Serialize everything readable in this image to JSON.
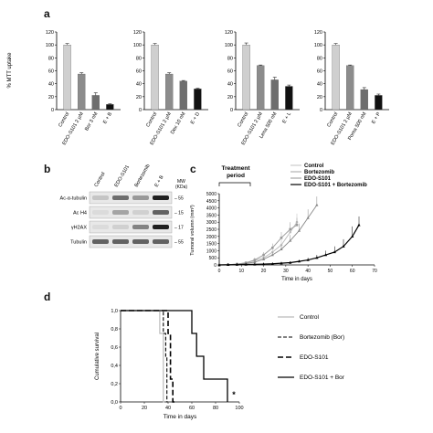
{
  "panels": {
    "a": "a",
    "b": "b",
    "c": "c",
    "d": "d"
  },
  "panel_a": {
    "ylabel": "% MTT uptake",
    "yticks": [
      "0",
      "20",
      "40",
      "60",
      "80",
      "100",
      "120"
    ],
    "colors": {
      "control": "#cfcfcf",
      "edo": "#8c8c8c",
      "drug": "#6e6e6e",
      "combo": "#111111"
    }
  },
  "panel_b": {
    "lanes": [
      "Control",
      "EDO-S101",
      "Bortezomib",
      "E + B"
    ],
    "rows": [
      "Ac-α-tubulin",
      "Ac H4",
      "γH2AX",
      "Tubulin"
    ],
    "mw_header": "MW\n(KDa)",
    "mw": [
      "– 55",
      "– 15",
      "– 17",
      "– 55"
    ]
  },
  "panel_c": {
    "annotation": "Treatment\nperiod",
    "legend": [
      "Control",
      "Bortezomib",
      "EDO-S101",
      "EDO-S101 + Bortezomib"
    ],
    "ylabel": "Tumoral volumn (mm³)",
    "xlabel": "Time in days",
    "yticks": [
      "0",
      "500",
      "1000",
      "1500",
      "2000",
      "2500",
      "3000",
      "3500",
      "4000",
      "4500",
      "5000"
    ],
    "xticks": [
      "0",
      "10",
      "20",
      "30",
      "40",
      "50",
      "60",
      "70"
    ]
  },
  "panel_d": {
    "ylabel": "Cumulative survival",
    "xlabel": "Time in days",
    "yticks": [
      "0,0",
      "0,2",
      "0,4",
      "0,6",
      "0,8",
      "1,0"
    ],
    "xticks": [
      "0",
      "20",
      "40",
      "60",
      "80",
      "100"
    ],
    "legend": [
      "Control",
      "Bortezomib (Bor)",
      "EDO-S101",
      "EDO-S101 + Bor"
    ],
    "significance": "*"
  },
  "chart_data": [
    {
      "type": "bar",
      "ylabel": "% MTT uptake",
      "ylim": [
        0,
        120
      ],
      "categories": [
        "Control",
        "EDO-S101 2 µM",
        "Bor 3 nM",
        "E + B"
      ],
      "values": [
        100,
        55,
        22,
        8
      ],
      "errors": [
        2,
        2,
        4,
        1
      ]
    },
    {
      "type": "bar",
      "ylim": [
        0,
        120
      ],
      "categories": [
        "Control",
        "EDO-S101 2 µM",
        "Dex 10 nM",
        "E + D"
      ],
      "values": [
        100,
        55,
        44,
        32
      ],
      "errors": [
        2,
        2,
        1,
        1
      ]
    },
    {
      "type": "bar",
      "ylim": [
        0,
        120
      ],
      "categories": [
        "Control",
        "EDO-S101 2 µM",
        "Lena 500 nM",
        "E + L"
      ],
      "values": [
        100,
        68,
        46,
        36
      ],
      "errors": [
        3,
        1,
        4,
        2
      ]
    },
    {
      "type": "bar",
      "ylim": [
        0,
        120
      ],
      "categories": [
        "Control",
        "EDO-S101 2 µM",
        "Poma 500 nM",
        "E + P"
      ],
      "values": [
        100,
        68,
        31,
        22
      ],
      "errors": [
        2,
        1,
        3,
        2
      ]
    },
    {
      "type": "line",
      "xlabel": "Time in days",
      "ylabel": "Tumoral volumn (mm³)",
      "xlim": [
        0,
        70
      ],
      "ylim": [
        0,
        5000
      ],
      "series": [
        {
          "name": "Control",
          "x": [
            0,
            4,
            8,
            12,
            16,
            20,
            24,
            28,
            32,
            35
          ],
          "y": [
            0,
            20,
            60,
            150,
            300,
            500,
            900,
            1400,
            2300,
            3000
          ],
          "err": [
            0,
            10,
            30,
            80,
            150,
            250,
            300,
            400,
            600,
            600
          ]
        },
        {
          "name": "Bortezomib",
          "x": [
            0,
            4,
            8,
            12,
            16,
            20,
            24,
            28,
            32,
            35
          ],
          "y": [
            0,
            20,
            60,
            150,
            350,
            700,
            1200,
            1900,
            2500,
            2800
          ],
          "err": [
            0,
            10,
            30,
            80,
            150,
            200,
            300,
            400,
            500,
            500
          ]
        },
        {
          "name": "EDO-S101",
          "x": [
            0,
            4,
            8,
            12,
            16,
            20,
            24,
            28,
            32,
            36,
            40,
            44
          ],
          "y": [
            0,
            20,
            50,
            100,
            200,
            400,
            700,
            1100,
            1700,
            2400,
            3300,
            4200
          ],
          "err": [
            0,
            10,
            20,
            40,
            80,
            150,
            200,
            300,
            400,
            500,
            600,
            600
          ]
        },
        {
          "name": "EDO-S101 + Bortezomib",
          "x": [
            0,
            4,
            8,
            12,
            16,
            20,
            24,
            28,
            32,
            36,
            40,
            44,
            48,
            52,
            56,
            60,
            63
          ],
          "y": [
            0,
            10,
            20,
            30,
            40,
            60,
            80,
            120,
            160,
            250,
            350,
            500,
            700,
            900,
            1300,
            2000,
            2800
          ],
          "err": [
            0,
            5,
            10,
            15,
            20,
            30,
            40,
            60,
            80,
            100,
            150,
            200,
            300,
            400,
            500,
            700,
            600
          ]
        }
      ]
    },
    {
      "type": "line",
      "xlabel": "Time in days",
      "ylabel": "Cumulative survival",
      "xlim": [
        0,
        100
      ],
      "ylim": [
        0,
        1
      ],
      "series": [
        {
          "name": "Control",
          "x": [
            0,
            33,
            33,
            36,
            36,
            37
          ],
          "y": [
            1,
            1,
            0.75,
            0.75,
            0,
            0
          ]
        },
        {
          "name": "Bortezomib (Bor)",
          "x": [
            0,
            36,
            36,
            38,
            38,
            39,
            39,
            40
          ],
          "y": [
            1,
            1,
            0.75,
            0.75,
            0.5,
            0.5,
            0,
            0
          ]
        },
        {
          "name": "EDO-S101",
          "x": [
            0,
            40,
            40,
            42,
            42,
            44,
            44,
            46
          ],
          "y": [
            1,
            1,
            0.75,
            0.75,
            0.25,
            0.25,
            0,
            0
          ]
        },
        {
          "name": "EDO-S101 + Bor",
          "x": [
            0,
            60,
            60,
            64,
            64,
            70,
            70,
            90,
            90
          ],
          "y": [
            1,
            1,
            0.75,
            0.75,
            0.5,
            0.5,
            0.25,
            0.25,
            0
          ]
        }
      ]
    }
  ]
}
